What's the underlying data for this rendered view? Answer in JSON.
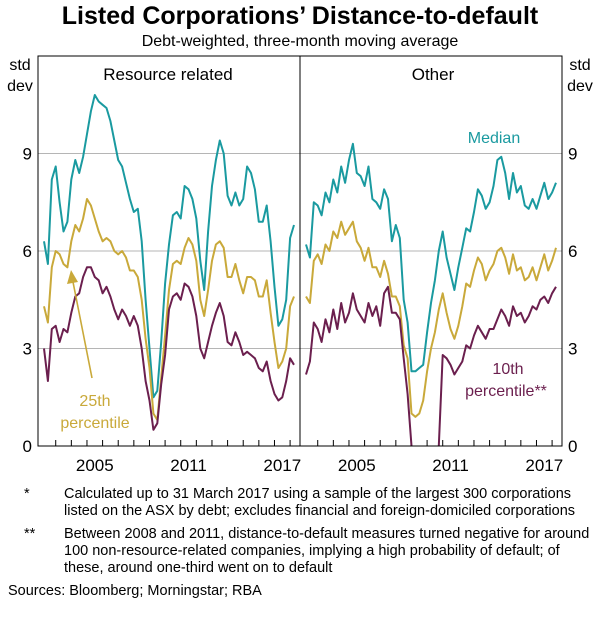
{
  "chart_data": {
    "type": "line",
    "title": "Listed Corporations’ Distance-to-default",
    "subtitle": "Debt-weighted, three-month moving average",
    "ylabel_left": [
      "std",
      "dev"
    ],
    "ylabel_right": [
      "std",
      "dev"
    ],
    "ylim": [
      0,
      12
    ],
    "yticks": [
      0,
      3,
      6,
      9
    ],
    "xticks": [
      "2005",
      "2011",
      "2017"
    ],
    "grid": true,
    "colors": {
      "Median": "#1a9aa0",
      "25th percentile": "#c9a93a",
      "10th percentile": "#6b1f4e"
    },
    "panels": [
      {
        "title": "Resource related",
        "x_start": 2002.25,
        "x_step": 0.25,
        "series": [
          {
            "name": "Median",
            "values": [
              6.3,
              5.6,
              8.2,
              8.6,
              7.5,
              6.6,
              6.9,
              8.2,
              8.8,
              8.4,
              8.9,
              9.6,
              10.3,
              10.8,
              10.6,
              10.5,
              10.4,
              10.0,
              9.4,
              8.8,
              8.6,
              8.1,
              7.6,
              7.2,
              7.3,
              6.3,
              4.5,
              3.0,
              1.5,
              1.7,
              3.2,
              5.0,
              6.2,
              7.1,
              7.2,
              7.0,
              8.0,
              7.9,
              7.6,
              7.0,
              5.7,
              4.8,
              6.6,
              8.0,
              8.8,
              9.4,
              9.0,
              7.7,
              7.4,
              7.8,
              7.4,
              7.6,
              8.6,
              8.4,
              7.9,
              6.9,
              6.9,
              7.4,
              6.3,
              4.9,
              3.7,
              3.9,
              4.5,
              6.4,
              6.8
            ]
          },
          {
            "name": "25th percentile",
            "values": [
              4.3,
              3.8,
              5.5,
              6.0,
              5.9,
              5.6,
              5.5,
              6.3,
              6.8,
              6.6,
              7.0,
              7.6,
              7.4,
              7.0,
              6.6,
              6.3,
              6.4,
              6.3,
              6.0,
              5.9,
              6.0,
              5.8,
              5.4,
              5.4,
              5.2,
              4.5,
              3.3,
              2.4,
              1.0,
              0.8,
              2.1,
              3.4,
              4.8,
              5.6,
              5.7,
              5.6,
              6.1,
              6.4,
              6.2,
              5.7,
              4.5,
              4.0,
              4.8,
              5.7,
              6.2,
              6.3,
              6.1,
              5.2,
              5.2,
              5.6,
              5.1,
              4.7,
              5.2,
              5.2,
              5.1,
              4.6,
              4.6,
              5.1,
              4.1,
              3.2,
              2.4,
              2.6,
              3.0,
              4.3,
              4.6
            ]
          },
          {
            "name": "10th percentile",
            "values": [
              3.0,
              2.0,
              3.6,
              3.7,
              3.2,
              3.6,
              3.5,
              4.1,
              4.6,
              4.7,
              5.2,
              5.5,
              5.5,
              5.2,
              5.1,
              4.7,
              4.9,
              4.6,
              4.2,
              3.9,
              4.2,
              4.0,
              3.7,
              4.0,
              3.7,
              3.0,
              2.0,
              1.4,
              0.5,
              0.7,
              1.9,
              2.8,
              4.2,
              4.6,
              4.7,
              4.5,
              5.0,
              4.9,
              4.6,
              4.0,
              3.0,
              2.7,
              3.2,
              3.7,
              4.1,
              4.4,
              4.0,
              3.2,
              3.1,
              3.5,
              3.2,
              2.8,
              2.9,
              2.8,
              2.7,
              2.4,
              2.3,
              2.6,
              2.0,
              1.6,
              1.4,
              1.5,
              2.0,
              2.7,
              2.5
            ]
          }
        ]
      },
      {
        "title": "Other",
        "x_start": 2002.25,
        "x_step": 0.25,
        "series": [
          {
            "name": "Median",
            "values": [
              6.2,
              5.8,
              7.5,
              7.4,
              7.1,
              7.8,
              7.5,
              8.2,
              7.8,
              8.6,
              8.1,
              8.8,
              9.3,
              8.4,
              8.3,
              8.0,
              8.6,
              7.6,
              7.5,
              7.3,
              7.9,
              7.6,
              6.3,
              6.8,
              6.4,
              4.5,
              3.8,
              2.3,
              2.3,
              2.4,
              2.5,
              3.5,
              4.4,
              5.1,
              6.0,
              6.6,
              5.8,
              5.3,
              4.8,
              5.5,
              6.1,
              6.7,
              6.6,
              7.2,
              7.9,
              7.7,
              7.3,
              7.5,
              8.0,
              8.8,
              8.9,
              8.4,
              7.6,
              8.4,
              7.8,
              8.0,
              7.4,
              7.3,
              7.6,
              7.3,
              7.7,
              8.1,
              7.6,
              7.8,
              8.1
            ]
          },
          {
            "name": "25th percentile",
            "values": [
              4.6,
              4.4,
              5.7,
              5.9,
              5.6,
              6.2,
              6.0,
              6.6,
              6.4,
              6.9,
              6.5,
              6.7,
              6.9,
              6.3,
              6.1,
              5.7,
              6.1,
              5.5,
              5.5,
              5.2,
              5.7,
              5.3,
              4.6,
              4.6,
              4.3,
              3.1,
              2.7,
              1.0,
              0.9,
              1.0,
              1.4,
              2.3,
              3.0,
              3.5,
              4.2,
              4.7,
              4.1,
              3.6,
              3.3,
              3.7,
              4.3,
              5.0,
              4.9,
              5.4,
              5.8,
              5.6,
              5.1,
              5.4,
              5.6,
              6.0,
              6.1,
              5.8,
              5.3,
              5.9,
              5.4,
              5.5,
              5.1,
              5.2,
              5.5,
              5.1,
              5.5,
              5.9,
              5.4,
              5.7,
              6.1
            ]
          },
          {
            "name": "10th percentile",
            "values": [
              2.2,
              2.6,
              3.8,
              3.6,
              3.2,
              3.9,
              3.5,
              4.2,
              3.6,
              4.4,
              3.8,
              4.1,
              4.7,
              4.2,
              4.0,
              3.8,
              4.4,
              4.0,
              4.3,
              3.7,
              4.7,
              4.9,
              4.1,
              4.1,
              3.9,
              2.7,
              1.6,
              0.0,
              null,
              null,
              null,
              null,
              null,
              null,
              0.0,
              2.8,
              2.7,
              2.5,
              2.2,
              2.4,
              2.6,
              3.1,
              3.0,
              3.4,
              3.7,
              3.5,
              3.3,
              3.6,
              3.6,
              3.9,
              4.2,
              4.0,
              3.7,
              4.3,
              4.0,
              4.1,
              3.8,
              4.0,
              4.3,
              4.2,
              4.5,
              4.6,
              4.4,
              4.7,
              4.9
            ]
          }
        ]
      }
    ],
    "annotations": {
      "median": "Median",
      "p25": [
        "25th",
        "percentile"
      ],
      "p10": [
        "10th",
        "percentile**"
      ]
    }
  },
  "notes": [
    {
      "mark": "*",
      "text": "Calculated up to 31 March 2017 using a sample of the largest 300 corporations listed on the ASX by debt; excludes financial and foreign-domiciled corporations"
    },
    {
      "mark": "**",
      "text": "Between 2008 and 2011, distance-to-default measures turned negative for around 100 non-resource-related companies, implying a high probability of default; of these, around one-third went on to default"
    }
  ],
  "sources": "Sources:   Bloomberg; Morningstar; RBA"
}
